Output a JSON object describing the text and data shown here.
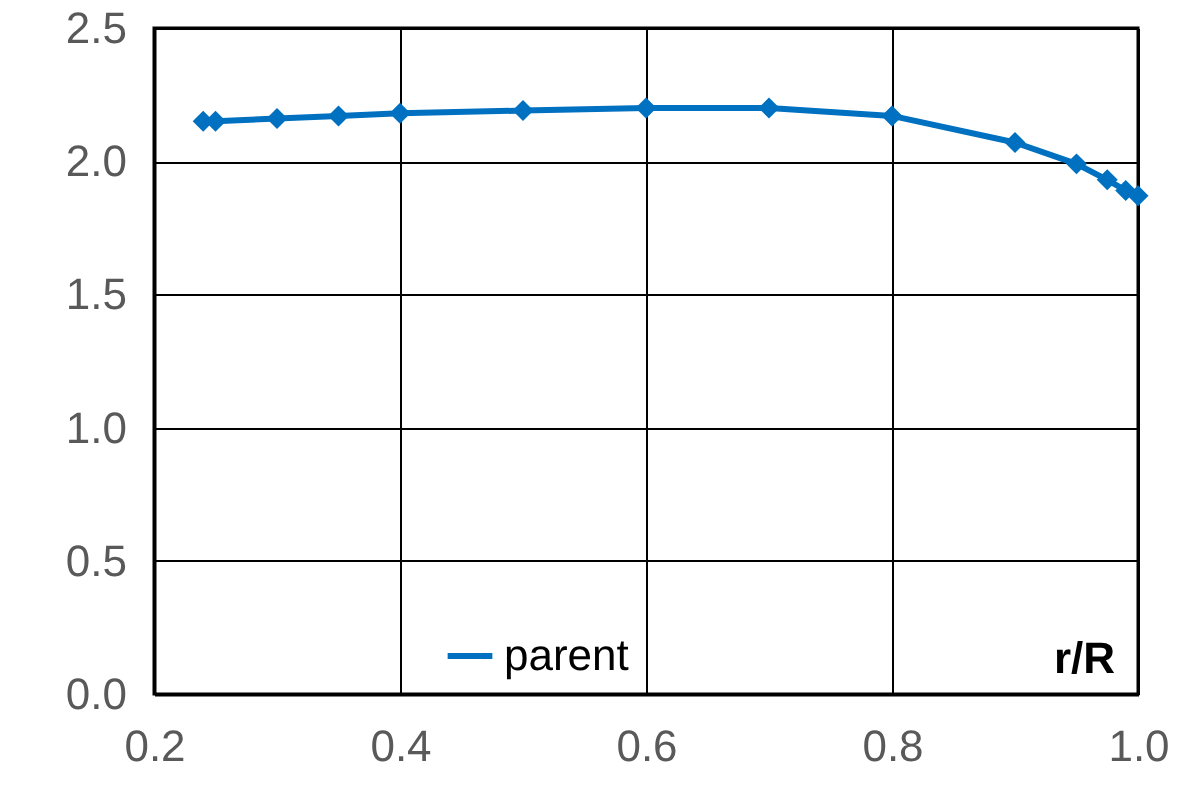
{
  "chart_data": {
    "type": "line",
    "xlabel": "r/R",
    "x": [
      0.24,
      0.25,
      0.3,
      0.35,
      0.4,
      0.5,
      0.6,
      0.7,
      0.8,
      0.9,
      0.95,
      0.975,
      0.99,
      1.0
    ],
    "series": [
      {
        "name": "parent",
        "color": "#0070c0",
        "values": [
          2.15,
          2.15,
          2.16,
          2.17,
          2.18,
          2.19,
          2.2,
          2.2,
          2.17,
          2.07,
          1.99,
          1.93,
          1.89,
          1.87
        ]
      }
    ],
    "xlim": [
      0.2,
      1.0
    ],
    "xticks": [
      {
        "value": 0.2,
        "label": "0.2"
      },
      {
        "value": 0.4,
        "label": "0.4"
      },
      {
        "value": 0.6,
        "label": "0.6"
      },
      {
        "value": 0.8,
        "label": "0.8"
      },
      {
        "value": 1.0,
        "label": "1.0"
      }
    ],
    "ylim": [
      0,
      2.5
    ],
    "yticks": [
      {
        "value": 0,
        "label": "0.0"
      },
      {
        "value": 0.5,
        "label": "0.5"
      },
      {
        "value": 1.0,
        "label": "1.0"
      },
      {
        "value": 1.5,
        "label": "1.5"
      },
      {
        "value": 2.0,
        "label": "2.0"
      },
      {
        "value": 2.5,
        "label": "2.5"
      }
    ],
    "grid": true,
    "legend": "bottom",
    "marker": "diamond",
    "line_style": "solid"
  }
}
